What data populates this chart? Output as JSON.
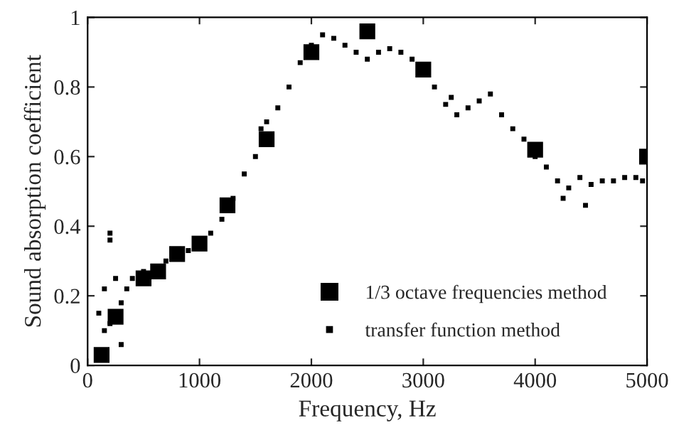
{
  "chart_data": {
    "type": "scatter",
    "xlabel": "Frequency, Hz",
    "ylabel": "Sound absorption coefficient",
    "xlim": [
      0,
      5000
    ],
    "ylim": [
      0,
      1
    ],
    "xticks": [
      0,
      1000,
      2000,
      3000,
      4000,
      5000
    ],
    "yticks": [
      0,
      0.2,
      0.4,
      0.6,
      0.8,
      1
    ],
    "grid": false,
    "legend": "bottom right",
    "series": [
      {
        "name": "1/3 octave frequencies method",
        "color": "#000000",
        "marker": "square",
        "x": [
          125,
          250,
          500,
          630,
          800,
          1000,
          1250,
          1600,
          2000,
          2500,
          3000,
          4000,
          5000
        ],
        "values": [
          0.03,
          0.14,
          0.25,
          0.27,
          0.32,
          0.35,
          0.46,
          0.65,
          0.9,
          0.96,
          0.85,
          0.62,
          0.6
        ]
      },
      {
        "name": "transfer function method",
        "color": "#000000",
        "marker": "square",
        "x": [
          100,
          150,
          200,
          300,
          350,
          400,
          500,
          700,
          900,
          1100,
          1200,
          1300,
          1400,
          1500,
          1600,
          1700,
          1800,
          1900,
          2000,
          2100,
          2200,
          2300,
          2400,
          2500,
          2600,
          2700,
          2800,
          2900,
          3100,
          3200,
          3300,
          3400,
          3500,
          3600,
          3700,
          3800,
          3900,
          4000,
          4100,
          4200,
          4300,
          4400,
          4500,
          4600,
          4700,
          4800,
          4900,
          4960,
          200,
          200,
          150,
          250,
          300,
          1550,
          3250,
          4250,
          4450
        ],
        "values": [
          0.15,
          0.1,
          0.12,
          0.18,
          0.22,
          0.25,
          0.27,
          0.3,
          0.33,
          0.38,
          0.42,
          0.48,
          0.55,
          0.6,
          0.7,
          0.74,
          0.8,
          0.87,
          0.92,
          0.95,
          0.94,
          0.92,
          0.9,
          0.88,
          0.9,
          0.91,
          0.9,
          0.88,
          0.8,
          0.75,
          0.72,
          0.74,
          0.76,
          0.78,
          0.72,
          0.68,
          0.65,
          0.6,
          0.57,
          0.53,
          0.51,
          0.54,
          0.52,
          0.53,
          0.53,
          0.54,
          0.54,
          0.53,
          0.38,
          0.36,
          0.22,
          0.25,
          0.06,
          0.68,
          0.77,
          0.48,
          0.46
        ]
      }
    ]
  }
}
